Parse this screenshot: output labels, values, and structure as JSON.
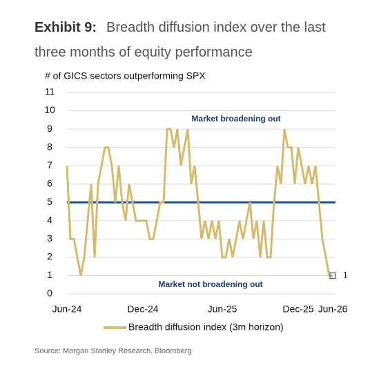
{
  "chart_data": {
    "type": "line",
    "title_label": "Exhibit 9:",
    "title": "Breadth diffusion index over the last three months of equity performance",
    "y_label": "# of GICS sectors outperforming SPX",
    "source": "Source: Morgan Stanley Research, Bloomberg",
    "categories": [
      "Jun-24",
      null,
      null,
      null,
      null,
      null,
      null,
      null,
      null,
      null,
      null,
      null,
      null,
      null,
      null,
      null,
      null,
      null,
      null,
      null,
      null,
      null,
      "Dec-24",
      null,
      null,
      null,
      null,
      null,
      null,
      null,
      null,
      null,
      null,
      null,
      null,
      null,
      null,
      null,
      null,
      null,
      null,
      null,
      null,
      null,
      null,
      "Jun-25",
      null,
      null,
      null,
      null,
      null,
      null,
      null,
      null,
      null,
      null,
      null,
      null,
      null,
      null,
      null,
      null,
      null,
      null,
      null,
      null,
      null,
      "Dec-25",
      null,
      null,
      null,
      null,
      null,
      null,
      null,
      null,
      null,
      "Jun-26"
    ],
    "series": [
      {
        "name": "Breadth diffusion index (3m horizon)",
        "color": "#d4ba6c",
        "values": [
          7,
          3,
          3,
          2,
          1,
          2,
          4,
          6,
          2,
          6,
          7,
          8,
          8,
          7,
          5,
          7,
          5,
          4,
          6,
          5,
          4,
          4,
          4,
          4,
          3,
          3,
          4,
          5,
          5,
          9,
          9,
          8,
          9,
          7,
          8,
          9,
          6,
          7,
          5,
          3,
          4,
          3,
          4,
          3,
          4,
          2,
          2,
          3,
          2,
          3,
          4,
          3,
          4,
          5,
          3,
          4,
          2,
          4,
          2,
          2,
          5,
          7,
          6,
          9,
          8,
          8,
          6,
          8,
          7,
          6,
          7,
          6,
          7,
          5,
          3,
          2,
          1,
          1
        ],
        "value_labels": [
          null,
          null,
          null,
          null,
          null,
          null,
          null,
          null,
          null,
          null,
          null,
          null,
          null,
          null,
          null,
          null,
          null,
          null,
          null,
          null,
          null,
          null,
          null,
          null,
          null,
          null,
          null,
          null,
          null,
          null,
          null,
          null,
          null,
          null,
          null,
          null,
          null,
          null,
          null,
          null,
          null,
          null,
          null,
          null,
          null,
          null,
          null,
          null,
          null,
          null,
          null,
          null,
          null,
          null,
          null,
          null,
          null,
          null,
          null,
          null,
          null,
          null,
          null,
          null,
          null,
          null,
          null,
          null,
          null,
          null,
          null,
          null,
          null,
          null,
          null,
          null,
          null,
          "1"
        ]
      }
    ],
    "reference_line": {
      "value": 5,
      "color": "#1f4e8c"
    },
    "annotations": [
      "Market broadening out",
      "Market not broadening out"
    ],
    "ylim": [
      0,
      11
    ],
    "yticks": [
      0,
      1,
      2,
      3,
      4,
      5,
      6,
      7,
      8,
      9,
      10,
      11
    ],
    "grid": true
  }
}
